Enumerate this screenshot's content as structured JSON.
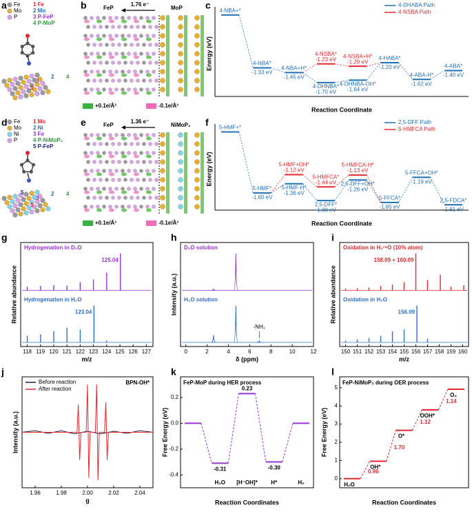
{
  "panels": [
    {
      "letter": "a",
      "legend": [
        {
          "name": "Fe",
          "color": "#9a9a9a"
        },
        {
          "name": "Mo",
          "color": "#e8b030"
        },
        {
          "name": "P",
          "color": "#d9a2e6"
        }
      ],
      "labels": [
        {
          "text": "1 Fe",
          "color": "#e5262d"
        },
        {
          "text": "2 Mo",
          "color": "#1f6fb5"
        },
        {
          "text": "3 P-FeP",
          "color": "#9b30d9"
        },
        {
          "text": "4 P-MoP",
          "color": "#2e9e3e"
        }
      ],
      "sites": [
        {
          "text": "1",
          "color": "#e5262d"
        },
        {
          "text": "2",
          "color": "#1f6fb5"
        },
        {
          "text": "3",
          "color": "#9b30d9"
        },
        {
          "text": "4",
          "color": "#2e9e3e"
        }
      ]
    },
    {
      "letter": "b",
      "left": "FeP",
      "transfer": "1.76 e⁻",
      "right": "MoP",
      "pos": "+0.1e/Å³",
      "neg": "-0.1e/Å³"
    },
    {
      "letter": "d",
      "legend": [
        {
          "name": "Fe",
          "color": "#9a9a9a"
        },
        {
          "name": "Mo",
          "color": "#e8b030"
        },
        {
          "name": "Ni",
          "color": "#7fd6e6"
        },
        {
          "name": "P",
          "color": "#d9a2e6"
        }
      ],
      "labels": [
        {
          "text": "1 Mo",
          "color": "#e5262d"
        },
        {
          "text": "2 Ni",
          "color": "#1f6fb5"
        },
        {
          "text": "3 Fe",
          "color": "#9b30d9"
        },
        {
          "text": "4 P-NiMoP₂",
          "color": "#2e9e3e"
        },
        {
          "text": "5 P-FeP",
          "color": "#1a237e"
        }
      ],
      "sites": [
        {
          "text": "1",
          "color": "#e5262d"
        },
        {
          "text": "2",
          "color": "#1f6fb5"
        },
        {
          "text": "3",
          "color": "#9b30d9"
        },
        {
          "text": "4",
          "color": "#2e9e3e"
        },
        {
          "text": "5",
          "color": "#1a237e"
        }
      ]
    },
    {
      "letter": "e",
      "left": "FeP",
      "transfer": "1.36 e⁻",
      "right": "NiMoP₂",
      "pos": "+0.1e/Å³",
      "neg": "-0.1e/Å³"
    }
  ],
  "chart_data": [
    {
      "letter": "c",
      "type": "energy",
      "xlabel": "Reaction Coordinate",
      "ylabel": "Energy (eV)",
      "ylim": [
        -2.05,
        0.1
      ],
      "series": [
        {
          "name": "4-DHABA Path",
          "color": "#1f6fb5",
          "labels": [
            "4-NBA+*",
            "4-NBA*",
            "4-NBA+H*",
            "4-DHNBA*",
            "4-DHNBA-OH*",
            "4-HABA*",
            "4-ABA-H*",
            "4-ABA*"
          ],
          "values": [
            0,
            -1.33,
            -1.45,
            -1.7,
            -1.64,
            -1.2,
            -1.62,
            -1.4
          ],
          "value_labels": [
            null,
            "-1.33 eV",
            "-1.45 eV",
            "-1.70 eV",
            "-1.64 eV",
            "-1.20 eV",
            "-1.62 eV",
            "-1.40 eV"
          ]
        },
        {
          "name": "4-NSBA Path",
          "color": "#e5262d",
          "labels": [
            null,
            null,
            null,
            "4-NSBA*",
            "4-NSBA+H*",
            null,
            null,
            null
          ],
          "values": [
            null,
            null,
            null,
            -1.23,
            -1.29,
            null,
            null,
            null
          ],
          "value_labels": [
            null,
            null,
            null,
            "-1.23 eV",
            "-1.29 eV",
            null,
            null,
            null
          ]
        }
      ]
    },
    {
      "letter": "f",
      "type": "energy",
      "xlabel": "Reaction Coordinate",
      "ylabel": "Energy (eV)",
      "ylim": [
        -2.05,
        0.1
      ],
      "series": [
        {
          "name": "2,5-DFF Path",
          "color": "#1f6fb5",
          "labels": [
            "5-HMF+*",
            "5-HMF*",
            "5-HMF-H*",
            "2,5-DFF*",
            "2,5-DFF+OH*",
            "5-FFCA*",
            "5-FFCA+OH*",
            "2,5-FDCA*"
          ],
          "values": [
            0,
            -1.6,
            -1.36,
            -1.8,
            -1.26,
            -1.85,
            -1.19,
            -1.91
          ],
          "value_labels": [
            null,
            "-1.60 eV",
            "-1.36 eV",
            "-1.80 eV",
            "-1.26 eV",
            "-1.85 eV",
            "-1.19 eV",
            "-1.91 eV"
          ]
        },
        {
          "name": "5-HMFCA Path",
          "color": "#e5262d",
          "labels": [
            null,
            null,
            "5-HMF+OH*",
            "5-HMFCA*",
            "5-HMFCA-H*",
            null,
            null,
            null
          ],
          "values": [
            null,
            null,
            -1.12,
            -1.44,
            -1.13,
            null,
            null,
            null
          ],
          "value_labels": [
            null,
            null,
            "-1.12 eV",
            "-1.44 eV",
            "-1.13 eV",
            null,
            null,
            null
          ]
        }
      ]
    },
    {
      "letter": "g",
      "type": "sticks",
      "xlabel": "m/z",
      "ylabel": "Relative abundance",
      "xlim": [
        117.5,
        127.5
      ],
      "xticks": [
        118,
        119,
        120,
        121,
        122,
        123,
        124,
        125,
        126,
        127
      ],
      "ylim": [
        0,
        100
      ],
      "series": [
        {
          "name": "Hydrogenation in D₂O",
          "color": "#9b30d9",
          "x": [
            118,
            119,
            120,
            121,
            122,
            123,
            124,
            125.04
          ],
          "values": [
            10,
            12,
            14,
            13,
            22,
            30,
            48,
            100
          ],
          "peak_label": "125.04"
        },
        {
          "name": "Hydrogenation in H₂O",
          "color": "#2a6fcf",
          "x": [
            118,
            119,
            120,
            121,
            122,
            123.04,
            124
          ],
          "values": [
            18,
            22,
            30,
            40,
            35,
            100,
            5
          ],
          "peak_label": "123.04"
        }
      ]
    },
    {
      "letter": "h",
      "type": "nmr",
      "xlabel": "δ (ppm)",
      "ylabel": "Intensity (a.u.)",
      "xlim": [
        -0.5,
        12
      ],
      "xticks": [
        0,
        2,
        4,
        6,
        8,
        10,
        12
      ],
      "ylim": [
        0,
        100
      ],
      "series": [
        {
          "name": "D₂O solution",
          "color": "#9b30d9",
          "x": [
            2.6,
            4.7
          ],
          "values": [
            3,
            100
          ]
        },
        {
          "name": "H₂O solution",
          "color": "#2a6fcf",
          "x": [
            2.6,
            4.7,
            6.9
          ],
          "values": [
            20,
            100,
            4
          ],
          "note": "-NH₂"
        }
      ]
    },
    {
      "letter": "i",
      "type": "sticks",
      "xlabel": "m/z",
      "ylabel": "Relative abundance",
      "xlim": [
        149.5,
        160.5
      ],
      "xticks": [
        150,
        151,
        152,
        153,
        154,
        155,
        156,
        157,
        158,
        159,
        160
      ],
      "ylim": [
        0,
        100
      ],
      "series": [
        {
          "name": "Oxidation in H₂¹⁸O (10% atom)",
          "color": "#e5262d",
          "x": [
            150,
            151,
            152,
            153,
            154,
            155,
            156,
            157,
            158.09,
            159,
            160.09
          ],
          "values": [
            5,
            6,
            8,
            12,
            16,
            22,
            100,
            28,
            42,
            10,
            14
          ],
          "peak_label": "158.09 + 160.09"
        },
        {
          "name": "Oxidation in H₂O",
          "color": "#2a6fcf",
          "x": [
            150,
            151,
            152,
            153,
            154,
            155,
            156.09,
            157
          ],
          "values": [
            5,
            8,
            12,
            18,
            30,
            35,
            100,
            10
          ],
          "peak_label": "156.09"
        }
      ]
    },
    {
      "letter": "j",
      "type": "line",
      "xlabel": "g",
      "ylabel": "Intensity (a.u.)",
      "annotation": "BPN-OH*",
      "xlim": [
        1.95,
        2.05
      ],
      "xticks": [
        1.96,
        1.98,
        {
          "value": 2.0,
          "label": "2.00"
        },
        2.02,
        2.04
      ],
      "ylim": [
        -1.1,
        1.1
      ],
      "series": [
        {
          "name": "Before reaction",
          "color": "#1a1a40",
          "x": [
            1.95,
            1.96,
            1.97,
            1.98,
            1.99,
            2.0,
            2.01,
            2.02,
            2.03,
            2.04,
            2.05
          ],
          "values": [
            0,
            0.03,
            -0.02,
            0.03,
            -0.03,
            0.02,
            -0.03,
            0.02,
            -0.02,
            0.03,
            0
          ]
        },
        {
          "name": "After reaction",
          "color": "#e5262d",
          "x": [
            1.95,
            1.992,
            1.993,
            1.994,
            1.995,
            1.999,
            2.0,
            2.001,
            2.002,
            2.006,
            2.007,
            2.008,
            2.009,
            2.013,
            2.014,
            2.015,
            2.016,
            2.05
          ],
          "values": [
            0,
            0,
            0.55,
            -0.55,
            0,
            0,
            0.95,
            -0.9,
            0,
            0,
            0.95,
            -0.95,
            0,
            0,
            0.6,
            -0.55,
            0,
            0
          ]
        }
      ]
    },
    {
      "letter": "k",
      "type": "levels",
      "title": "FeP-MoP during HER process",
      "xlabel": "Reaction Coordinates",
      "ylabel": "Free Energy (eV)",
      "color": "#9b30d9",
      "categories": [
        null,
        "H₂O",
        "[H⁻OH]*",
        "H*",
        "H₂"
      ],
      "values": [
        0,
        -0.31,
        0.23,
        -0.3,
        0
      ],
      "value_labels": [
        null,
        "-0.31",
        "0.23",
        "-0.30",
        null
      ],
      "ylim": [
        -0.5,
        0.36
      ],
      "yticks": [
        -0.4,
        -0.2,
        {
          "value": 0,
          "label": "0.0"
        },
        0.2
      ]
    },
    {
      "letter": "l",
      "type": "levels",
      "title": "FeP-NiMoP₂ during OER process",
      "xlabel": "Reaction Coordinates",
      "ylabel": "Free Energy (eV)",
      "color": "#e5262d",
      "categories": [
        "H₂O",
        "OH*",
        "O*",
        "OOH*",
        "O₂"
      ],
      "values": [
        0,
        0.96,
        2.66,
        3.78,
        4.92
      ],
      "steps": [
        0.96,
        1.7,
        1.12,
        1.14
      ],
      "step_labels": [
        "0.96",
        "1.70",
        "1.12",
        "1.14"
      ],
      "ylim": [
        -0.5,
        5.6
      ],
      "yticks": [
        0,
        1,
        2,
        3,
        4,
        5
      ]
    }
  ]
}
